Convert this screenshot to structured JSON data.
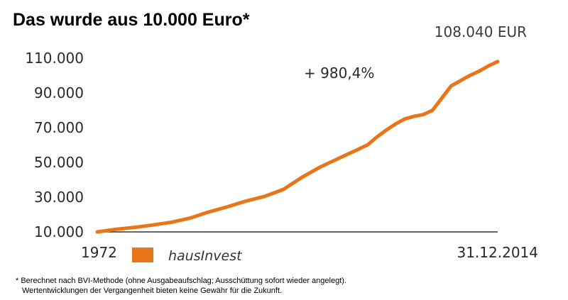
{
  "chart_data": {
    "type": "line",
    "title": "Das wurde aus 10.000 Euro*",
    "end_value_label": "108.040 EUR",
    "annotation": "+ 980,4%",
    "xlabel": "",
    "ylabel": "",
    "x_tick_labels": [
      "1972",
      "31.12.2014"
    ],
    "y_tick_labels": [
      "110.000",
      "90.000",
      "70.000",
      "50.000",
      "30.000",
      "10.000"
    ],
    "y_ticks": [
      110000,
      90000,
      70000,
      50000,
      30000,
      10000
    ],
    "ylim": [
      10000,
      110000
    ],
    "xlim": [
      1972,
      2015
    ],
    "grid": false,
    "legend_position": "bottom",
    "series": [
      {
        "name": "hausInvest",
        "color": "#E8751A",
        "x": [
          1972,
          1974,
          1976,
          1978,
          1980,
          1982,
          1984,
          1986,
          1988,
          1990,
          1992,
          1994,
          1996,
          1998,
          2000,
          2001,
          2002,
          2003,
          2004,
          2005,
          2006,
          2007,
          2008,
          2009,
          2010,
          2011,
          2012,
          2013,
          2014,
          2015
        ],
        "values": [
          10000,
          11500,
          12600,
          14000,
          15600,
          18000,
          21500,
          24500,
          27800,
          30500,
          34500,
          41500,
          47500,
          52500,
          57500,
          60000,
          64500,
          68500,
          72000,
          75000,
          76500,
          77500,
          80000,
          87000,
          94000,
          97000,
          100000,
          102500,
          105500,
          108040
        ]
      }
    ]
  },
  "footnote": {
    "line1": "* Berechnet nach BVI-Methode (ohne Ausgabeaufschlag; Ausschüttung sofort wieder angelegt).",
    "line2": "Wertentwicklungen der Vergangenheit bieten keine Gewähr für die Zukunft."
  }
}
